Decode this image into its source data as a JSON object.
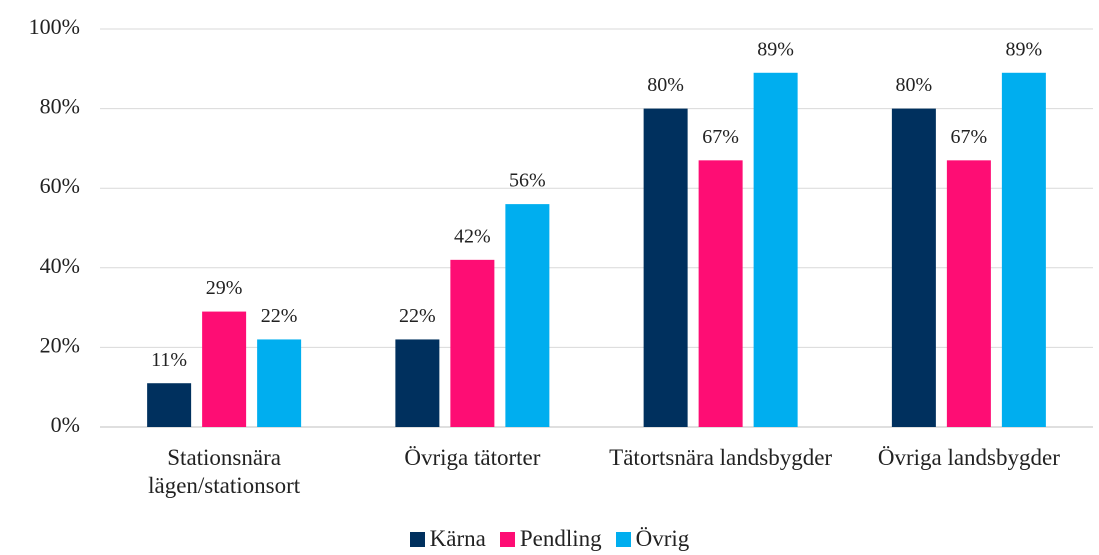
{
  "chart_data": {
    "type": "bar",
    "categories": [
      "Stationsnära lägen/stationsort",
      "Övriga tätorter",
      "Tätortsnära landsbygder",
      "Övriga landsbygder"
    ],
    "series": [
      {
        "name": "Kärna",
        "color": "#00305e",
        "values": [
          11,
          22,
          80,
          80
        ],
        "value_labels": [
          "11%",
          "22%",
          "80%",
          "80%"
        ]
      },
      {
        "name": "Pendling",
        "color": "#fe0d74",
        "values": [
          29,
          42,
          67,
          67
        ],
        "value_labels": [
          "29%",
          "42%",
          "67%",
          "67%"
        ]
      },
      {
        "name": "Övrig",
        "color": "#00aeef",
        "values": [
          22,
          56,
          89,
          89
        ],
        "value_labels": [
          "22%",
          "56%",
          "89%",
          "89%"
        ]
      }
    ],
    "ylim": [
      0,
      100
    ],
    "yticks": [
      {
        "value": 0,
        "label": "0%"
      },
      {
        "value": 20,
        "label": "20%"
      },
      {
        "value": 40,
        "label": "40%"
      },
      {
        "value": 60,
        "label": "60%"
      },
      {
        "value": 80,
        "label": "80%"
      },
      {
        "value": 100,
        "label": "100%"
      }
    ],
    "grid": true,
    "legend": "bottom"
  }
}
